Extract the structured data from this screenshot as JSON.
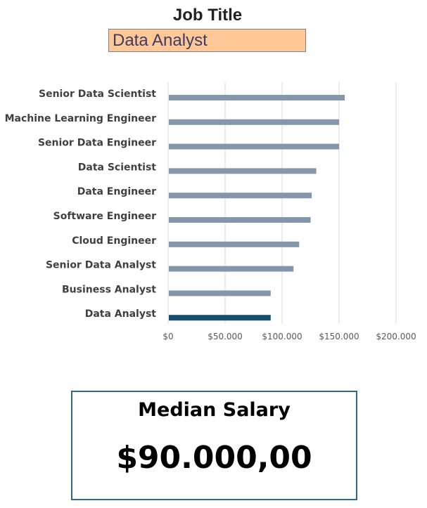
{
  "header": {
    "job_title_label": "Job Title",
    "selected_job_title": "Data Analyst"
  },
  "colors": {
    "bar_default": "#8496a9",
    "bar_highlight": "#174e6c",
    "selector_fill": "#ffc896",
    "box_border": "#2e6a8a",
    "gridline": "#d9d9d9"
  },
  "chart_data": {
    "type": "bar",
    "orientation": "horizontal",
    "categories": [
      "Senior Data Scientist",
      "Machine Learning Engineer",
      "Senior Data Engineer",
      "Data Scientist",
      "Data Engineer",
      "Software Engineer",
      "Cloud Engineer",
      "Senior Data Analyst",
      "Business Analyst",
      "Data Analyst"
    ],
    "values": [
      155000,
      150000,
      150000,
      130000,
      126000,
      125000,
      115000,
      110000,
      90000,
      90000
    ],
    "highlight_category": "Data Analyst",
    "x_ticks": [
      "$0",
      "$50.000",
      "$100.000",
      "$150.000",
      "$200.000"
    ],
    "xlim": [
      0,
      200000
    ],
    "grid": "vertical",
    "legend": "none"
  },
  "summary": {
    "title": "Median Salary",
    "value": "$90.000,00"
  }
}
